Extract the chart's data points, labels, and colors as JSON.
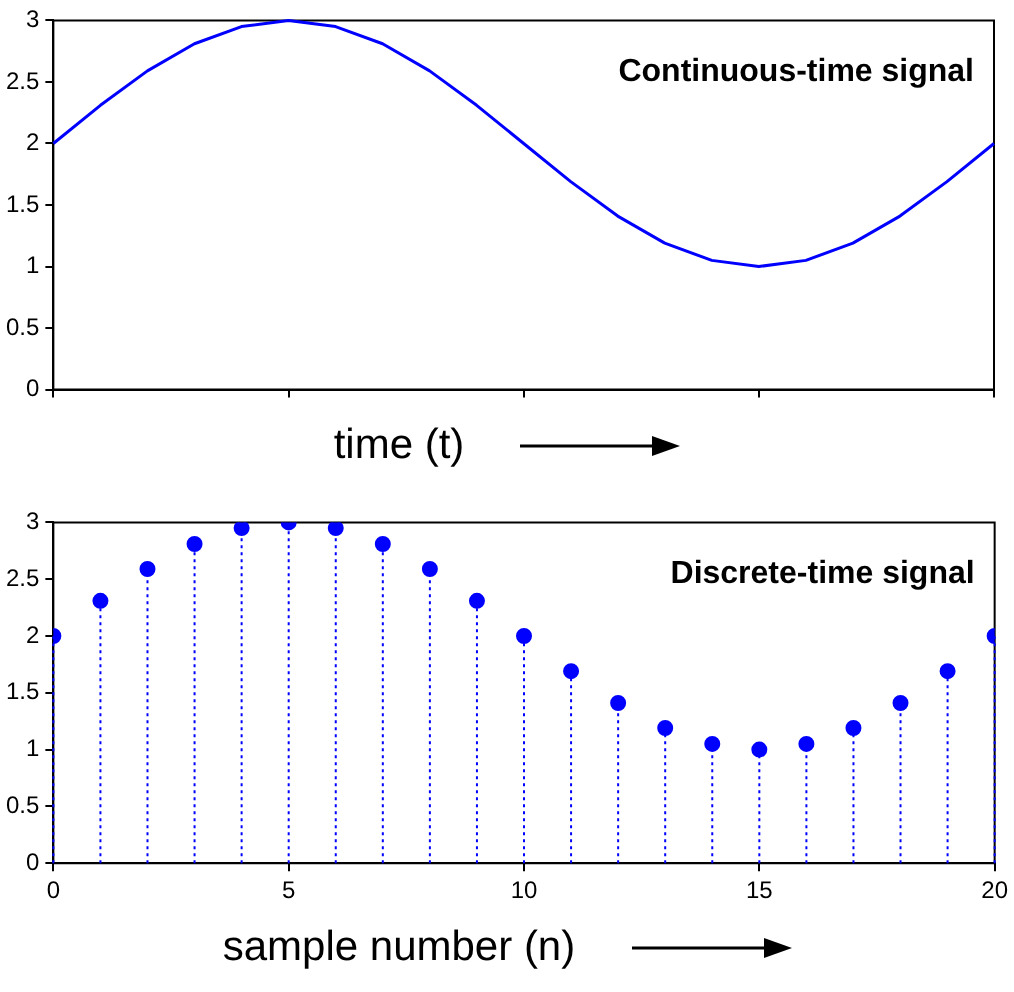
{
  "chart_data": [
    {
      "type": "line",
      "xlabel": "time (t)",
      "annotations": [
        "Continuous-time signal"
      ],
      "x": [
        0,
        1,
        2,
        3,
        4,
        5,
        6,
        7,
        8,
        9,
        10,
        11,
        12,
        13,
        14,
        15,
        16,
        17,
        18,
        19,
        20
      ],
      "values": [
        2,
        2.31,
        2.59,
        2.81,
        2.95,
        3,
        2.95,
        2.81,
        2.59,
        2.31,
        2,
        1.69,
        1.41,
        1.19,
        1.05,
        1,
        1.05,
        1.19,
        1.41,
        1.69,
        2
      ],
      "color": "#0000ff",
      "marker": "none",
      "line_style": "solid",
      "xlim": [
        0,
        20
      ],
      "xticks": [
        {
          "value": 0,
          "label": null
        },
        {
          "value": 5,
          "label": null
        },
        {
          "value": 10,
          "label": null
        },
        {
          "value": 15,
          "label": null
        },
        {
          "value": 20,
          "label": null
        }
      ],
      "ylim": [
        0,
        3
      ],
      "yticks": [
        0,
        0.5,
        1,
        1.5,
        2,
        2.5,
        3
      ],
      "tick_labels": "y"
    },
    {
      "type": "lollipop",
      "xlabel": "sample number (n)",
      "annotations": [
        "Discrete-time signal"
      ],
      "x": [
        0,
        1,
        2,
        3,
        4,
        5,
        6,
        7,
        8,
        9,
        10,
        11,
        12,
        13,
        14,
        15,
        16,
        17,
        18,
        19,
        20
      ],
      "values": [
        2,
        2.31,
        2.59,
        2.81,
        2.95,
        3,
        2.95,
        2.81,
        2.59,
        2.31,
        2,
        1.69,
        1.41,
        1.19,
        1.05,
        1,
        1.05,
        1.19,
        1.41,
        1.69,
        2
      ],
      "color": "#0000ff",
      "marker": "circle",
      "line_style": "dotted",
      "xlim": [
        0,
        20
      ],
      "xticks": [
        0,
        5,
        10,
        15,
        20
      ],
      "ylim": [
        0,
        3
      ],
      "yticks": [
        0,
        0.5,
        1,
        1.5,
        2,
        2.5,
        3
      ]
    }
  ]
}
